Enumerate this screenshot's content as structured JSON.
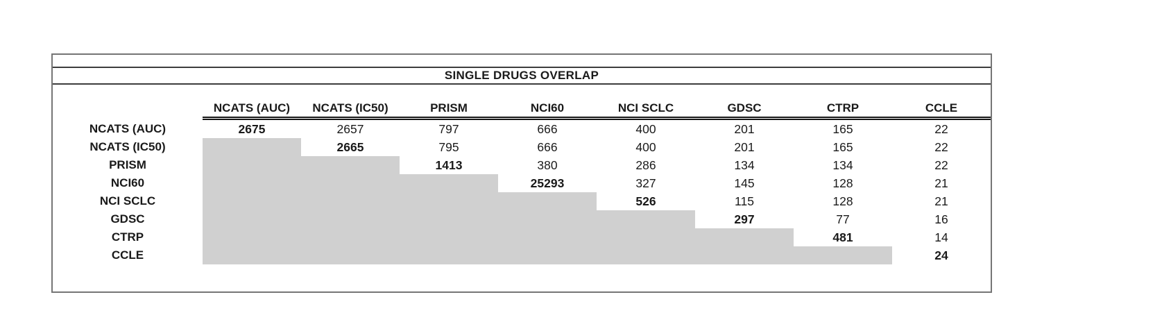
{
  "title": "SINGLE DRUGS OVERLAP",
  "chart_data": {
    "type": "table",
    "title": "SINGLE DRUGS OVERLAP",
    "columns": [
      "NCATS (AUC)",
      "NCATS (IC50)",
      "PRISM",
      "NCI60",
      "NCI SCLC",
      "GDSC",
      "CTRP",
      "CCLE"
    ],
    "rows": [
      {
        "label": "NCATS (AUC)",
        "values": [
          "2675",
          "2657",
          "797",
          "666",
          "400",
          "201",
          "165",
          "22"
        ]
      },
      {
        "label": "NCATS (IC50)",
        "values": [
          null,
          "2665",
          "795",
          "666",
          "400",
          "201",
          "165",
          "22"
        ]
      },
      {
        "label": "PRISM",
        "values": [
          null,
          null,
          "1413",
          "380",
          "286",
          "134",
          "134",
          "22"
        ]
      },
      {
        "label": "NCI60",
        "values": [
          null,
          null,
          null,
          "25293",
          "327",
          "145",
          "128",
          "21"
        ]
      },
      {
        "label": "NCI SCLC",
        "values": [
          null,
          null,
          null,
          null,
          "526",
          "115",
          "128",
          "21"
        ]
      },
      {
        "label": "GDSC",
        "values": [
          null,
          null,
          null,
          null,
          null,
          "297",
          "77",
          "16"
        ]
      },
      {
        "label": "CTRP",
        "values": [
          null,
          null,
          null,
          null,
          null,
          null,
          "481",
          "14"
        ]
      },
      {
        "label": "CCLE",
        "values": [
          null,
          null,
          null,
          null,
          null,
          null,
          null,
          "24"
        ]
      }
    ],
    "layout_notes": "lower triangle shaded; diagonal values bold"
  },
  "colors": {
    "shade": "#d0d0d0",
    "outer_border": "#757575",
    "inner_line": "#3d3d3d",
    "header_underline": "#141414",
    "text": "#1a1a1a",
    "background": "#ffffff"
  }
}
